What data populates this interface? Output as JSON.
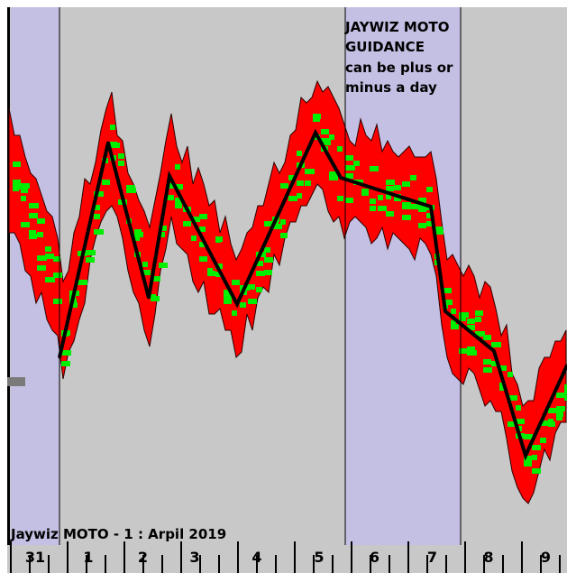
{
  "chart_data": {
    "type": "line",
    "title": "Jaywiz MOTO - 1 : Arpil 2019",
    "annotation_lines": [
      "JAYWIZ MOTO",
      "GUIDANCE",
      "can be plus or",
      "minus a day"
    ],
    "categories": [
      "31",
      "1",
      "2",
      "3",
      "4",
      "5",
      "6",
      "7",
      "8",
      "9"
    ],
    "weekend_shading": [
      [
        "31",
        "31"
      ],
      [
        "6",
        "7"
      ]
    ],
    "series": [
      {
        "values": [
          {
            "x": "1",
            "y": 0
          },
          {
            "x": "1",
            "y": 100
          },
          {
            "x": "2",
            "y": 28
          },
          {
            "x": "2",
            "y": 82
          },
          {
            "x": "4",
            "y": 25
          },
          {
            "x": "5",
            "y": 100
          },
          {
            "x": "5",
            "y": 83
          },
          {
            "x": "7",
            "y": 69
          },
          {
            "x": "7",
            "y": 28
          },
          {
            "x": "8",
            "y": 19
          },
          {
            "x": "9",
            "y": -41
          },
          {
            "x": "9",
            "y": -4
          }
        ]
      }
    ],
    "ylim": [
      -50,
      140
    ],
    "grid": false,
    "colors": {
      "background": "#c8c8c8",
      "weekend": "#c4c0e4",
      "guidance_line": "#000000",
      "band_primary": "#ff0000",
      "band_secondary": "#00ee00",
      "separator": "#000000"
    }
  }
}
